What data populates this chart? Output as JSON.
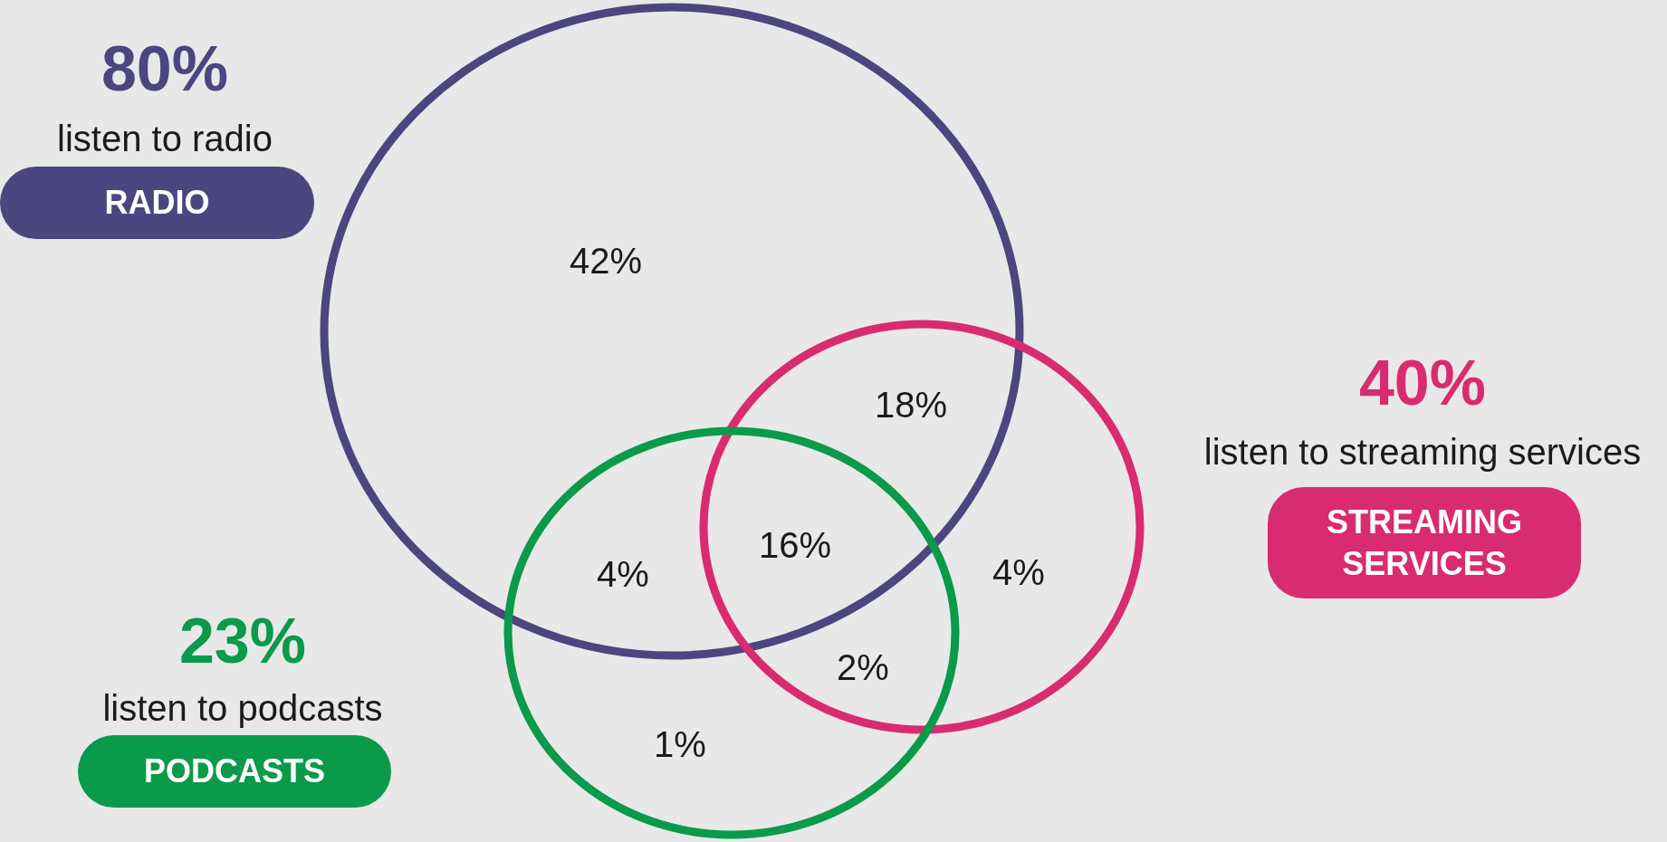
{
  "chart_data": {
    "type": "other",
    "categories": [
      "RADIO",
      "STREAMING SERVICES",
      "PODCASTS"
    ],
    "values": [
      80,
      40,
      23
    ],
    "value_labels": [
      "80%",
      "40%",
      "23%"
    ],
    "colors": [
      "#4b4580",
      "#d92b6f",
      "#0a9a4a"
    ],
    "annotations": [
      "listen to radio",
      "listen to streaming services",
      "listen to podcasts",
      "42%",
      "18%",
      "4%",
      "16%",
      "4%",
      "2%",
      "1%"
    ]
  }
}
